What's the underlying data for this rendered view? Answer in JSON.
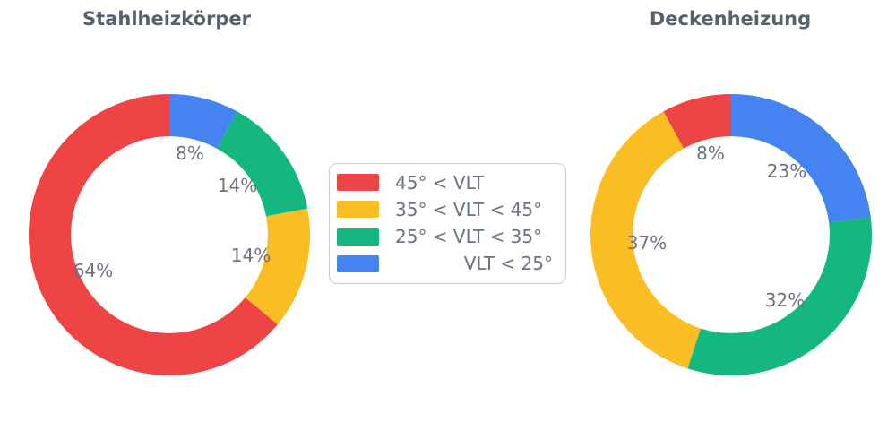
{
  "figure": {
    "background": "#FFFFFF",
    "title_color": "#57606F",
    "label_color": "#6A7383",
    "legend_border_color": "#C9CDD3"
  },
  "legend": {
    "items": [
      {
        "label": "45° < VLT",
        "color": "#EF4446",
        "align": "left"
      },
      {
        "label": "35° < VLT < 45°",
        "color": "#FABD23",
        "align": "left"
      },
      {
        "label": "25° < VLT < 35°",
        "color": "#14B87F",
        "align": "left"
      },
      {
        "label": "VLT < 25°",
        "color": "#4583F0",
        "align": "right"
      }
    ]
  },
  "chart_data": {
    "type": "pie",
    "subtype": "donut",
    "categories": [
      "45° < VLT",
      "35° < VLT < 45°",
      "25° < VLT < 35°",
      "VLT < 25°"
    ],
    "colors": [
      "#EF4446",
      "#FABD23",
      "#14B87F",
      "#4583F0"
    ],
    "series": [
      {
        "name": "Stahlheizkörper",
        "values": [
          64,
          14,
          14,
          8
        ]
      },
      {
        "name": "Deckenheizung",
        "values": [
          8,
          37,
          32,
          23
        ]
      }
    ],
    "value_suffix": "%",
    "start_angle": 90,
    "direction": "counterclockwise",
    "hole_ratio": 0.7,
    "label_radius_ratio": 0.6,
    "legend_position": "center",
    "grid": false
  }
}
